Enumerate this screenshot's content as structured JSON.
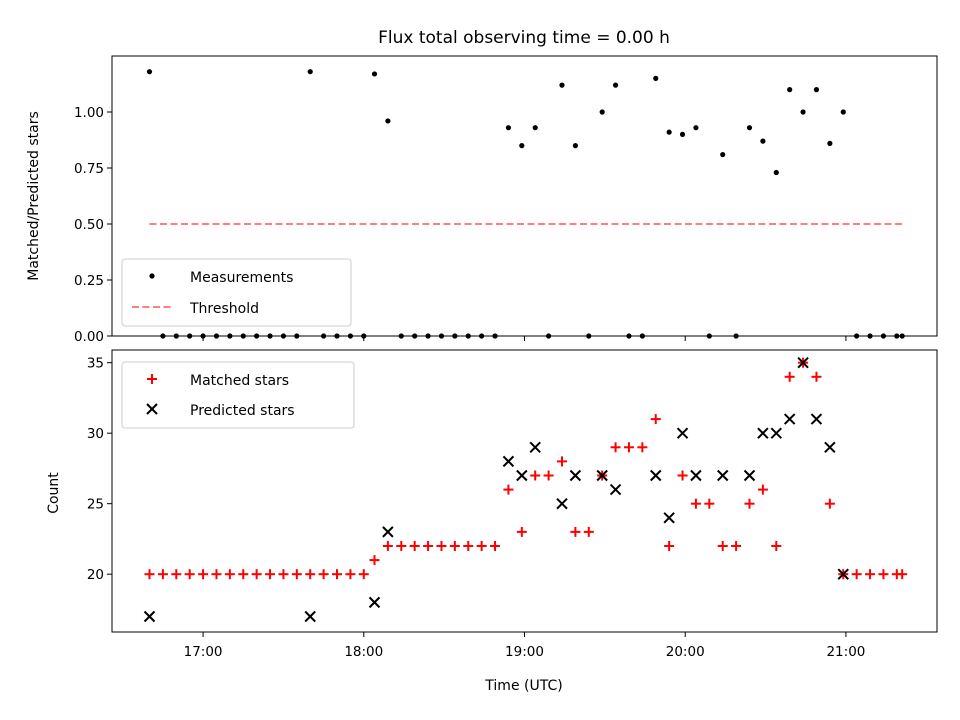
{
  "chart_data": [
    {
      "type": "scatter",
      "title": "Flux total observing time = 0.00 h",
      "xlabel": "",
      "ylabel": "Matched/Predicted stars",
      "ylim": [
        0,
        1.25
      ],
      "yticks": [
        "0.00",
        "0.25",
        "0.50",
        "0.75",
        "1.00"
      ],
      "legend_position": "lower-left",
      "series": [
        {
          "name": "Measurements",
          "color": "#000000",
          "marker": "dot",
          "points": [
            [
              "16:40",
              1.18
            ],
            [
              "16:45",
              0
            ],
            [
              "16:50",
              0
            ],
            [
              "16:55",
              0
            ],
            [
              "17:00",
              0
            ],
            [
              "17:05",
              0
            ],
            [
              "17:10",
              0
            ],
            [
              "17:15",
              0
            ],
            [
              "17:20",
              0
            ],
            [
              "17:25",
              0
            ],
            [
              "17:30",
              0
            ],
            [
              "17:35",
              0
            ],
            [
              "17:40",
              1.18
            ],
            [
              "17:45",
              0
            ],
            [
              "17:50",
              0
            ],
            [
              "17:55",
              0
            ],
            [
              "18:00",
              0
            ],
            [
              "18:04",
              1.17
            ],
            [
              "18:09",
              0.96
            ],
            [
              "18:14",
              0
            ],
            [
              "18:19",
              0
            ],
            [
              "18:24",
              0
            ],
            [
              "18:29",
              0
            ],
            [
              "18:34",
              0
            ],
            [
              "18:39",
              0
            ],
            [
              "18:44",
              0
            ],
            [
              "18:49",
              0
            ],
            [
              "18:54",
              0.93
            ],
            [
              "18:59",
              0.85
            ],
            [
              "19:04",
              0.93
            ],
            [
              "19:09",
              0
            ],
            [
              "19:14",
              1.12
            ],
            [
              "19:19",
              0.85
            ],
            [
              "19:24",
              0
            ],
            [
              "19:29",
              1.0
            ],
            [
              "19:34",
              1.12
            ],
            [
              "19:39",
              0
            ],
            [
              "19:44",
              0
            ],
            [
              "19:49",
              1.15
            ],
            [
              "19:54",
              0.91
            ],
            [
              "19:59",
              0.9
            ],
            [
              "20:04",
              0.93
            ],
            [
              "20:09",
              0
            ],
            [
              "20:14",
              0.81
            ],
            [
              "20:19",
              0
            ],
            [
              "20:24",
              0.93
            ],
            [
              "20:29",
              0.87
            ],
            [
              "20:34",
              0.73
            ],
            [
              "20:39",
              1.1
            ],
            [
              "20:44",
              1.0
            ],
            [
              "20:49",
              1.1
            ],
            [
              "20:54",
              0.86
            ],
            [
              "20:59",
              1.0
            ],
            [
              "21:04",
              0
            ],
            [
              "21:09",
              0
            ],
            [
              "21:14",
              0
            ],
            [
              "21:19",
              0
            ],
            [
              "21:21",
              0
            ]
          ]
        },
        {
          "name": "Threshold",
          "color": "#ff7f7f",
          "style": "dashed",
          "points": [
            [
              "16:40",
              0.5
            ],
            [
              "21:21",
              0.5
            ]
          ]
        }
      ]
    },
    {
      "type": "scatter",
      "title": "",
      "xlabel": "Time (UTC)",
      "ylabel": "Count",
      "ylim": [
        15.9,
        35.9
      ],
      "yticks": [
        "20",
        "25",
        "30",
        "35"
      ],
      "xticks": [
        "17:00",
        "18:00",
        "19:00",
        "20:00",
        "21:00"
      ],
      "xrange": [
        "16:26",
        "21:34"
      ],
      "legend_position": "top-left",
      "series": [
        {
          "name": "Matched stars",
          "color": "#ff0000",
          "marker": "plus",
          "points": [
            [
              "16:40",
              20
            ],
            [
              "16:45",
              20
            ],
            [
              "16:50",
              20
            ],
            [
              "16:55",
              20
            ],
            [
              "17:00",
              20
            ],
            [
              "17:05",
              20
            ],
            [
              "17:10",
              20
            ],
            [
              "17:15",
              20
            ],
            [
              "17:20",
              20
            ],
            [
              "17:25",
              20
            ],
            [
              "17:30",
              20
            ],
            [
              "17:35",
              20
            ],
            [
              "17:40",
              20
            ],
            [
              "17:45",
              20
            ],
            [
              "17:50",
              20
            ],
            [
              "17:55",
              20
            ],
            [
              "18:00",
              20
            ],
            [
              "18:04",
              21
            ],
            [
              "18:09",
              22
            ],
            [
              "18:14",
              22
            ],
            [
              "18:19",
              22
            ],
            [
              "18:24",
              22
            ],
            [
              "18:29",
              22
            ],
            [
              "18:34",
              22
            ],
            [
              "18:39",
              22
            ],
            [
              "18:44",
              22
            ],
            [
              "18:49",
              22
            ],
            [
              "18:54",
              26
            ],
            [
              "18:59",
              23
            ],
            [
              "19:04",
              27
            ],
            [
              "19:09",
              27
            ],
            [
              "19:14",
              28
            ],
            [
              "19:19",
              23
            ],
            [
              "19:24",
              23
            ],
            [
              "19:29",
              27
            ],
            [
              "19:34",
              29
            ],
            [
              "19:39",
              29
            ],
            [
              "19:44",
              29
            ],
            [
              "19:49",
              31
            ],
            [
              "19:54",
              22
            ],
            [
              "19:59",
              27
            ],
            [
              "20:04",
              25
            ],
            [
              "20:09",
              25
            ],
            [
              "20:14",
              22
            ],
            [
              "20:19",
              22
            ],
            [
              "20:24",
              25
            ],
            [
              "20:29",
              26
            ],
            [
              "20:34",
              22
            ],
            [
              "20:39",
              34
            ],
            [
              "20:44",
              35
            ],
            [
              "20:49",
              34
            ],
            [
              "20:54",
              25
            ],
            [
              "20:59",
              20
            ],
            [
              "21:04",
              20
            ],
            [
              "21:09",
              20
            ],
            [
              "21:14",
              20
            ],
            [
              "21:19",
              20
            ],
            [
              "21:21",
              20
            ]
          ]
        },
        {
          "name": "Predicted stars",
          "color": "#000000",
          "marker": "x",
          "points": [
            [
              "16:40",
              17
            ],
            [
              "17:40",
              17
            ],
            [
              "18:04",
              18
            ],
            [
              "18:09",
              23
            ],
            [
              "18:54",
              28
            ],
            [
              "18:59",
              27
            ],
            [
              "19:04",
              29
            ],
            [
              "19:14",
              25
            ],
            [
              "19:19",
              27
            ],
            [
              "19:29",
              27
            ],
            [
              "19:34",
              26
            ],
            [
              "19:49",
              27
            ],
            [
              "19:54",
              24
            ],
            [
              "19:59",
              30
            ],
            [
              "20:04",
              27
            ],
            [
              "20:14",
              27
            ],
            [
              "20:24",
              27
            ],
            [
              "20:29",
              30
            ],
            [
              "20:34",
              30
            ],
            [
              "20:39",
              31
            ],
            [
              "20:44",
              35
            ],
            [
              "20:49",
              31
            ],
            [
              "20:54",
              29
            ],
            [
              "20:59",
              20
            ]
          ]
        }
      ]
    }
  ]
}
